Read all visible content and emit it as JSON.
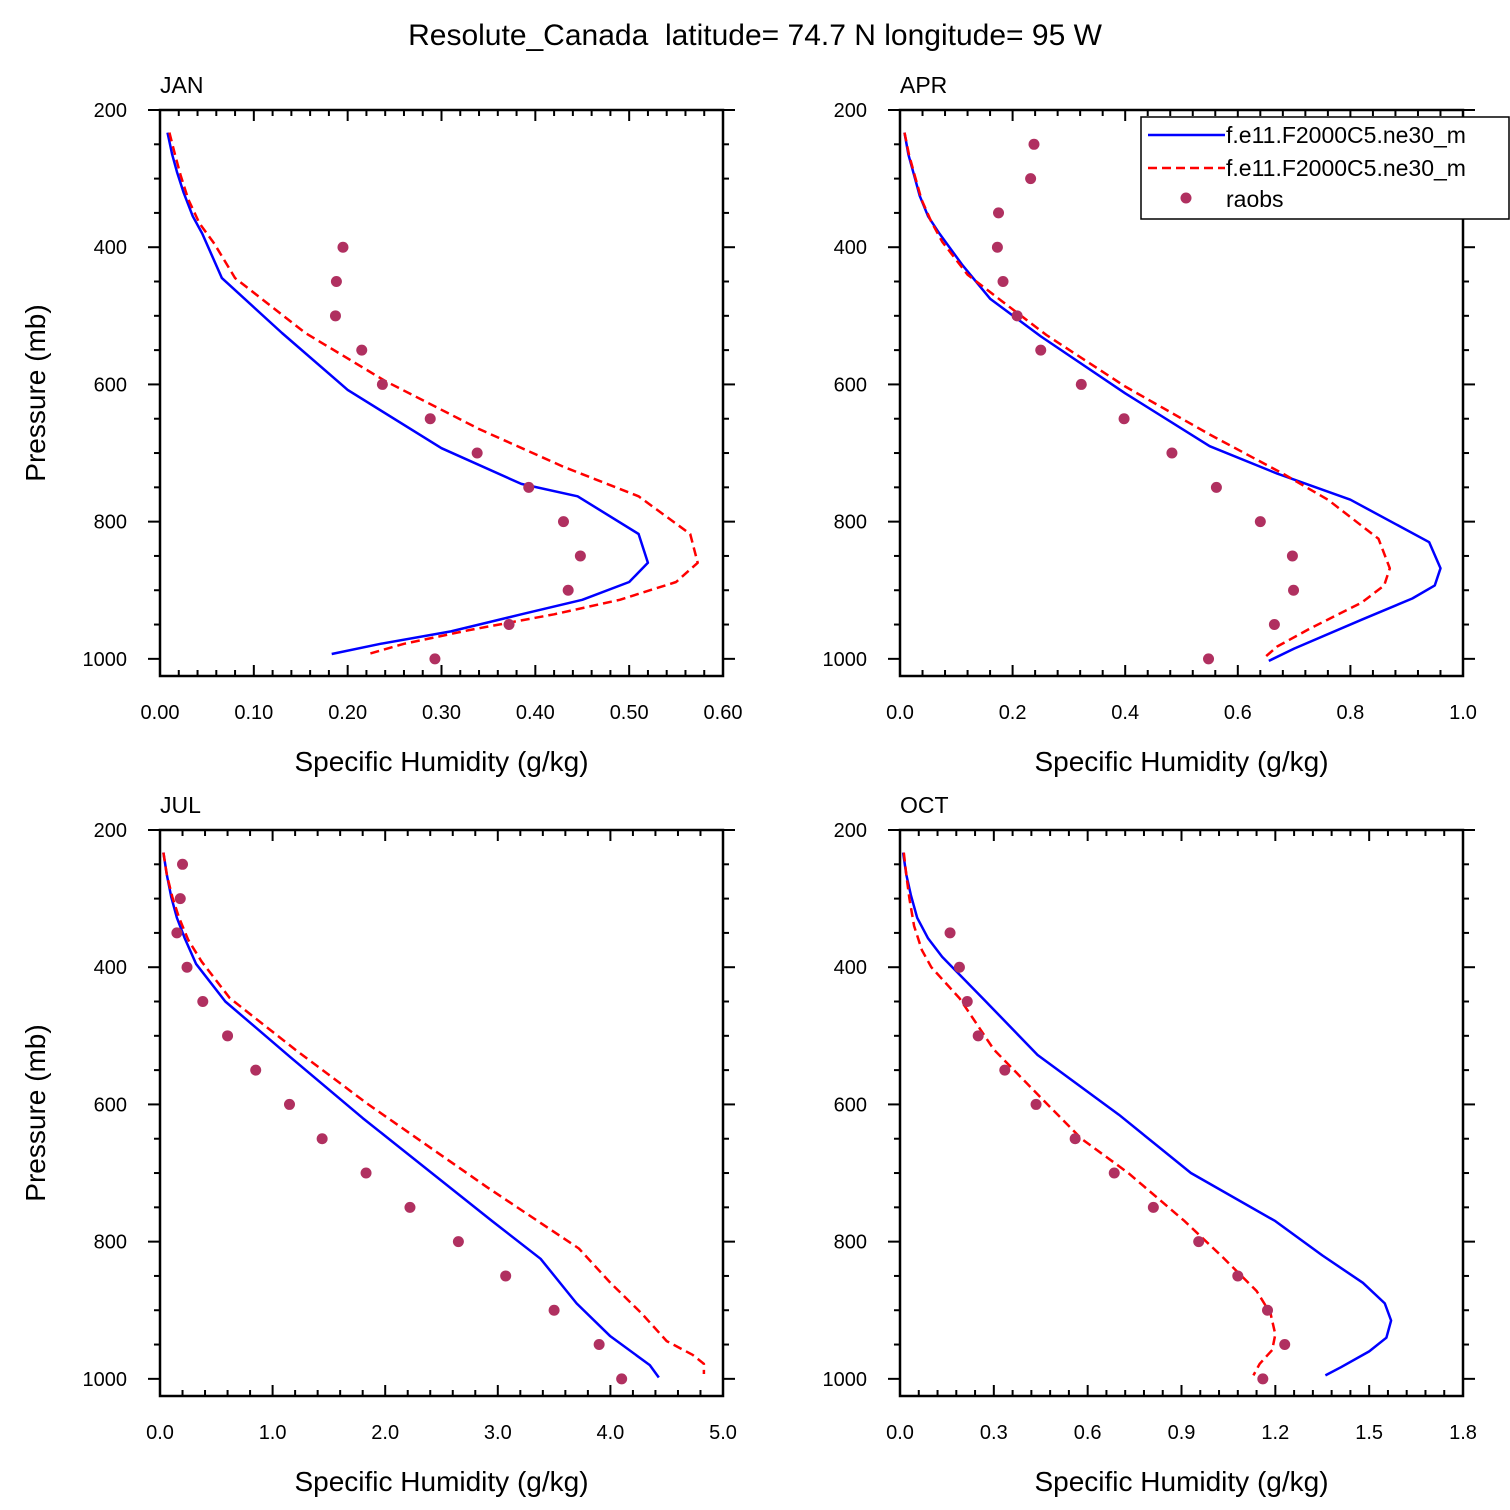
{
  "title": "Resolute_Canada  latitude= 74.7 N longitude= 95 W",
  "colors": {
    "model1": "#0000ff",
    "model2": "#ff0000",
    "obs": "#b03060"
  },
  "legend": {
    "entries": [
      "f.e11.F2000C5.ne30_m",
      "f.e11.F2000C5.ne30_m",
      "raobs"
    ]
  },
  "chart_data": [
    {
      "type": "line",
      "panel": "JAN",
      "xlabel": "Specific Humidity (g/kg)",
      "ylabel": "Pressure (mb)",
      "xlim": [
        0,
        0.6
      ],
      "ylim": [
        1025,
        200
      ],
      "xticks": [
        0,
        0.1,
        0.2,
        0.3,
        0.4,
        0.5,
        0.6
      ],
      "xtick_labels": [
        "0.00",
        "0.10",
        "0.20",
        "0.30",
        "0.40",
        "0.50",
        "0.60"
      ],
      "yticks": [
        200,
        400,
        600,
        800,
        1000
      ],
      "ytick_labels": [
        "200",
        "400",
        "600",
        "800",
        "1000"
      ],
      "series": [
        {
          "name": "f.e11.F2000C5.ne30_m",
          "style": "solid",
          "points": [
            [
              0.008,
              233
            ],
            [
              0.013,
              265
            ],
            [
              0.018,
              290
            ],
            [
              0.025,
              320
            ],
            [
              0.035,
              355
            ],
            [
              0.045,
              380
            ],
            [
              0.066,
              445
            ],
            [
              0.13,
              525
            ],
            [
              0.2,
              608
            ],
            [
              0.3,
              693
            ],
            [
              0.385,
              745
            ],
            [
              0.445,
              763
            ],
            [
              0.51,
              818
            ],
            [
              0.52,
              860
            ],
            [
              0.5,
              888
            ],
            [
              0.45,
              914
            ],
            [
              0.385,
              935
            ],
            [
              0.31,
              960
            ],
            [
              0.235,
              978
            ],
            [
              0.183,
              993
            ]
          ]
        },
        {
          "name": "f.e11.F2000C5.ne30_m",
          "style": "dashed",
          "points": [
            [
              0.01,
              233
            ],
            [
              0.016,
              265
            ],
            [
              0.022,
              295
            ],
            [
              0.03,
              330
            ],
            [
              0.042,
              365
            ],
            [
              0.058,
              395
            ],
            [
              0.08,
              445
            ],
            [
              0.155,
              525
            ],
            [
              0.24,
              595
            ],
            [
              0.34,
              665
            ],
            [
              0.43,
              720
            ],
            [
              0.51,
              763
            ],
            [
              0.565,
              818
            ],
            [
              0.573,
              860
            ],
            [
              0.55,
              888
            ],
            [
              0.49,
              914
            ],
            [
              0.42,
              935
            ],
            [
              0.33,
              958
            ],
            [
              0.26,
              978
            ],
            [
              0.222,
              993
            ]
          ]
        },
        {
          "name": "raobs",
          "style": "markers",
          "points": [
            [
              0.195,
              400
            ],
            [
              0.188,
              450
            ],
            [
              0.187,
              500
            ],
            [
              0.215,
              550
            ],
            [
              0.237,
              600
            ],
            [
              0.288,
              650
            ],
            [
              0.338,
              700
            ],
            [
              0.393,
              750
            ],
            [
              0.43,
              800
            ],
            [
              0.448,
              850
            ],
            [
              0.435,
              900
            ],
            [
              0.372,
              950
            ],
            [
              0.293,
              1000
            ]
          ]
        }
      ]
    },
    {
      "type": "line",
      "panel": "APR",
      "xlabel": "Specific Humidity (g/kg)",
      "ylabel": "",
      "xlim": [
        0,
        1.0
      ],
      "ylim": [
        1025,
        200
      ],
      "xticks": [
        0,
        0.2,
        0.4,
        0.6,
        0.8,
        1.0
      ],
      "xtick_labels": [
        "0.0",
        "0.2",
        "0.4",
        "0.6",
        "0.8",
        "1.0"
      ],
      "yticks": [
        200,
        400,
        600,
        800,
        1000
      ],
      "ytick_labels": [
        "200",
        "400",
        "600",
        "800",
        "1000"
      ],
      "series": [
        {
          "name": "f.e11.F2000C5.ne30_m",
          "style": "solid",
          "points": [
            [
              0.008,
              233
            ],
            [
              0.015,
              265
            ],
            [
              0.025,
              295
            ],
            [
              0.035,
              325
            ],
            [
              0.05,
              355
            ],
            [
              0.07,
              380
            ],
            [
              0.11,
              425
            ],
            [
              0.16,
              475
            ],
            [
              0.25,
              530
            ],
            [
              0.4,
              613
            ],
            [
              0.55,
              690
            ],
            [
              0.67,
              730
            ],
            [
              0.8,
              768
            ],
            [
              0.94,
              830
            ],
            [
              0.96,
              868
            ],
            [
              0.95,
              893
            ],
            [
              0.91,
              912
            ],
            [
              0.82,
              943
            ],
            [
              0.7,
              985
            ],
            [
              0.655,
              1003
            ]
          ]
        },
        {
          "name": "f.e11.F2000C5.ne30_m",
          "style": "dashed",
          "points": [
            [
              0.008,
              233
            ],
            [
              0.016,
              265
            ],
            [
              0.027,
              298
            ],
            [
              0.038,
              330
            ],
            [
              0.055,
              362
            ],
            [
              0.075,
              392
            ],
            [
              0.12,
              440
            ],
            [
              0.18,
              478
            ],
            [
              0.26,
              528
            ],
            [
              0.4,
              603
            ],
            [
              0.55,
              673
            ],
            [
              0.68,
              730
            ],
            [
              0.76,
              768
            ],
            [
              0.85,
              825
            ],
            [
              0.87,
              868
            ],
            [
              0.86,
              893
            ],
            [
              0.82,
              918
            ],
            [
              0.73,
              955
            ],
            [
              0.67,
              982
            ],
            [
              0.645,
              1000
            ]
          ]
        },
        {
          "name": "raobs",
          "style": "markers",
          "points": [
            [
              0.238,
              250
            ],
            [
              0.232,
              300
            ],
            [
              0.175,
              350
            ],
            [
              0.173,
              400
            ],
            [
              0.183,
              450
            ],
            [
              0.208,
              500
            ],
            [
              0.25,
              550
            ],
            [
              0.322,
              600
            ],
            [
              0.398,
              650
            ],
            [
              0.483,
              700
            ],
            [
              0.562,
              750
            ],
            [
              0.64,
              800
            ],
            [
              0.697,
              850
            ],
            [
              0.699,
              900
            ],
            [
              0.665,
              950
            ],
            [
              0.548,
              1000
            ]
          ]
        }
      ]
    },
    {
      "type": "line",
      "panel": "JUL",
      "xlabel": "Specific Humidity (g/kg)",
      "ylabel": "Pressure (mb)",
      "xlim": [
        0,
        5.0
      ],
      "ylim": [
        1025,
        200
      ],
      "xticks": [
        0,
        1,
        2,
        3,
        4,
        5
      ],
      "xtick_labels": [
        "0.0",
        "1.0",
        "2.0",
        "3.0",
        "4.0",
        "5.0"
      ],
      "yticks": [
        200,
        400,
        600,
        800,
        1000
      ],
      "ytick_labels": [
        "200",
        "400",
        "600",
        "800",
        "1000"
      ],
      "series": [
        {
          "name": "f.e11.F2000C5.ne30_m",
          "style": "solid",
          "points": [
            [
              0.03,
              233
            ],
            [
              0.06,
              265
            ],
            [
              0.1,
              298
            ],
            [
              0.15,
              328
            ],
            [
              0.22,
              358
            ],
            [
              0.32,
              395
            ],
            [
              0.58,
              450
            ],
            [
              1.15,
              530
            ],
            [
              1.8,
              620
            ],
            [
              2.95,
              770
            ],
            [
              3.38,
              825
            ],
            [
              3.7,
              890
            ],
            [
              4.0,
              938
            ],
            [
              4.35,
              980
            ],
            [
              4.43,
              998
            ]
          ]
        },
        {
          "name": "f.e11.F2000C5.ne30_m",
          "style": "dashed",
          "points": [
            [
              0.03,
              233
            ],
            [
              0.06,
              265
            ],
            [
              0.11,
              298
            ],
            [
              0.17,
              328
            ],
            [
              0.25,
              360
            ],
            [
              0.37,
              392
            ],
            [
              0.62,
              445
            ],
            [
              1.2,
              520
            ],
            [
              1.85,
              600
            ],
            [
              2.9,
              720
            ],
            [
              3.72,
              810
            ],
            [
              4.0,
              860
            ],
            [
              4.28,
              905
            ],
            [
              4.5,
              945
            ],
            [
              4.73,
              965
            ],
            [
              4.83,
              978
            ],
            [
              4.83,
              993
            ]
          ]
        },
        {
          "name": "raobs",
          "style": "markers",
          "points": [
            [
              0.2,
              250
            ],
            [
              0.18,
              300
            ],
            [
              0.15,
              350
            ],
            [
              0.24,
              400
            ],
            [
              0.38,
              450
            ],
            [
              0.6,
              500
            ],
            [
              0.85,
              550
            ],
            [
              1.15,
              600
            ],
            [
              1.44,
              650
            ],
            [
              1.83,
              700
            ],
            [
              2.22,
              750
            ],
            [
              2.65,
              800
            ],
            [
              3.07,
              850
            ],
            [
              3.5,
              900
            ],
            [
              3.9,
              950
            ],
            [
              4.1,
              1000
            ]
          ]
        }
      ]
    },
    {
      "type": "line",
      "panel": "OCT",
      "xlabel": "Specific Humidity (g/kg)",
      "ylabel": "",
      "xlim": [
        0,
        1.8
      ],
      "ylim": [
        1025,
        200
      ],
      "xticks": [
        0,
        0.3,
        0.6,
        0.9,
        1.2,
        1.5,
        1.8
      ],
      "xtick_labels": [
        "0.0",
        "0.3",
        "0.6",
        "0.9",
        "1.2",
        "1.5",
        "1.8"
      ],
      "yticks": [
        200,
        400,
        600,
        800,
        1000
      ],
      "ytick_labels": [
        "200",
        "400",
        "600",
        "800",
        "1000"
      ],
      "series": [
        {
          "name": "f.e11.F2000C5.ne30_m",
          "style": "solid",
          "points": [
            [
              0.01,
              233
            ],
            [
              0.02,
              265
            ],
            [
              0.035,
              295
            ],
            [
              0.055,
              328
            ],
            [
              0.09,
              358
            ],
            [
              0.135,
              385
            ],
            [
              0.27,
              448
            ],
            [
              0.44,
              528
            ],
            [
              0.7,
              615
            ],
            [
              0.93,
              700
            ],
            [
              1.2,
              770
            ],
            [
              1.35,
              820
            ],
            [
              1.48,
              860
            ],
            [
              1.55,
              890
            ],
            [
              1.57,
              915
            ],
            [
              1.555,
              940
            ],
            [
              1.5,
              960
            ],
            [
              1.41,
              983
            ],
            [
              1.36,
              995
            ]
          ]
        },
        {
          "name": "f.e11.F2000C5.ne30_m",
          "style": "dashed",
          "points": [
            [
              0.012,
              233
            ],
            [
              0.02,
              265
            ],
            [
              0.03,
              300
            ],
            [
              0.045,
              340
            ],
            [
              0.07,
              375
            ],
            [
              0.1,
              400
            ],
            [
              0.19,
              445
            ],
            [
              0.3,
              520
            ],
            [
              0.45,
              590
            ],
            [
              0.58,
              650
            ],
            [
              0.73,
              700
            ],
            [
              0.91,
              770
            ],
            [
              1.03,
              822
            ],
            [
              1.14,
              872
            ],
            [
              1.185,
              905
            ],
            [
              1.2,
              935
            ],
            [
              1.19,
              958
            ],
            [
              1.15,
              978
            ],
            [
              1.13,
              995
            ]
          ]
        },
        {
          "name": "raobs",
          "style": "markers",
          "points": [
            [
              0.16,
              350
            ],
            [
              0.19,
              400
            ],
            [
              0.215,
              450
            ],
            [
              0.25,
              500
            ],
            [
              0.335,
              550
            ],
            [
              0.435,
              600
            ],
            [
              0.56,
              650
            ],
            [
              0.685,
              700
            ],
            [
              0.81,
              750
            ],
            [
              0.955,
              800
            ],
            [
              1.08,
              850
            ],
            [
              1.175,
              900
            ],
            [
              1.23,
              950
            ],
            [
              1.16,
              1000
            ]
          ]
        }
      ]
    }
  ]
}
